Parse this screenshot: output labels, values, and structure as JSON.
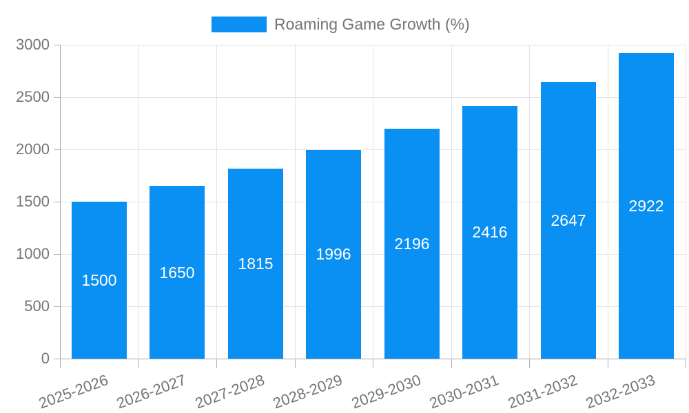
{
  "legend": {
    "label": "Roaming Game Growth (%)",
    "swatch_color": "#0a8ff2"
  },
  "chart_data": {
    "type": "bar",
    "title": "Roaming Game Growth (%)",
    "series_name": "Roaming Game Growth (%)",
    "categories": [
      "2025-2026",
      "2026-2027",
      "2027-2028",
      "2028-2029",
      "2029-2030",
      "2030-2031",
      "2031-2032",
      "2032-2033"
    ],
    "values": [
      1500,
      1650,
      1815,
      1996,
      2196,
      2416,
      2647,
      2922
    ],
    "value_labels": [
      "1500",
      "1650",
      "1815",
      "1996",
      "2196",
      "2416",
      "2647",
      "2922"
    ],
    "ylim": [
      0,
      3000
    ],
    "yticks": [
      0,
      500,
      1000,
      1500,
      2000,
      2500,
      3000
    ],
    "grid": true,
    "legend_position": "top",
    "bar_color": "#0a8ff2",
    "value_label_color": "#ffffff",
    "axis_text_color": "#757575",
    "gridline_color": "#e2e2e2",
    "axis_line_color": "#a6a6a6",
    "x_label_rotation_deg": -20
  }
}
